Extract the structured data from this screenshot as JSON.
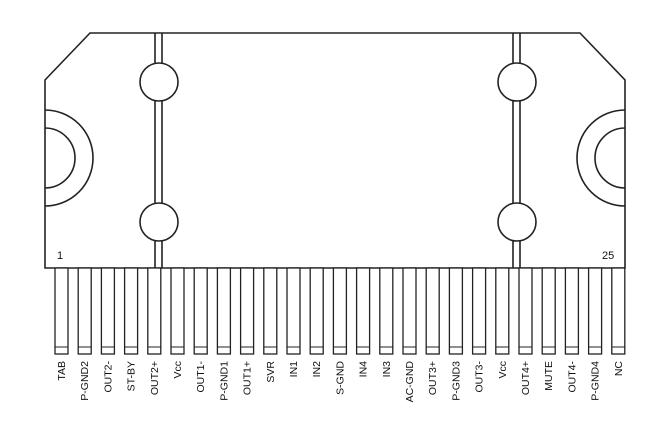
{
  "package": {
    "first_pin_number": "1",
    "last_pin_number": "25"
  },
  "pins": [
    "TAB",
    "P-GND2",
    "OUT2-",
    "ST-BY",
    "OUT2+",
    "Vcc",
    "OUT1-",
    "P-GND1",
    "OUT1+",
    "SVR",
    "IN1",
    "IN2",
    "S-GND",
    "IN4",
    "IN3",
    "AC-GND",
    "OUT3+",
    "P-GND3",
    "OUT3-",
    "Vcc",
    "OUT4+",
    "MUTE",
    "OUT4-",
    "P-GND4",
    "NC"
  ],
  "colors": {
    "stroke": "#222222",
    "fill": "#ffffff"
  }
}
